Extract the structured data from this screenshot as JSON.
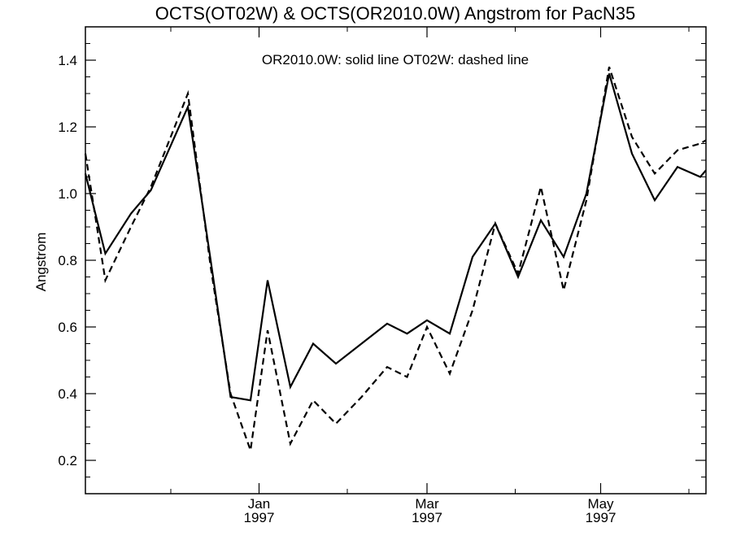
{
  "chart_data": {
    "type": "line",
    "title": "OCTS(OT02W) & OCTS(OR2010.0W)  Angstrom for PacN35",
    "annotation": "OR2010.0W: solid line   OT02W: dashed line",
    "xlabel": "",
    "ylabel": "Angstrom",
    "ylim": [
      0.1,
      1.5
    ],
    "yticks": [
      {
        "value": 0.2,
        "label": "0.2"
      },
      {
        "value": 0.4,
        "label": "0.4"
      },
      {
        "value": 0.6,
        "label": "0.6"
      },
      {
        "value": 0.8,
        "label": "0.8"
      },
      {
        "value": 1.0,
        "label": "1.0"
      },
      {
        "value": 1.2,
        "label": "1.2"
      },
      {
        "value": 1.4,
        "label": "1.4"
      }
    ],
    "yminor_step": 0.05,
    "xlim": [
      "1996-11-01",
      "1997-06-07"
    ],
    "xticks_major": [
      {
        "date": "1997-01-01",
        "month": "Jan",
        "year": "1997"
      },
      {
        "date": "1997-03-01",
        "month": "Mar",
        "year": "1997"
      },
      {
        "date": "1997-05-01",
        "month": "May",
        "year": "1997"
      }
    ],
    "xticks_minor": [
      "1996-12-01",
      "1997-02-01",
      "1997-04-01",
      "1997-06-01"
    ],
    "x": [
      "1996-11-01",
      "1996-11-08",
      "1996-11-17",
      "1996-11-24",
      "1996-12-07",
      "1996-12-15",
      "1996-12-22",
      "1996-12-29",
      "1997-01-04",
      "1997-01-12",
      "1997-01-20",
      "1997-01-28",
      "1997-02-06",
      "1997-02-15",
      "1997-02-22",
      "1997-03-01",
      "1997-03-09",
      "1997-03-17",
      "1997-03-25",
      "1997-04-02",
      "1997-04-10",
      "1997-04-18",
      "1997-04-26",
      "1997-05-04",
      "1997-05-12",
      "1997-05-20",
      "1997-05-28",
      "1997-06-05",
      "1997-06-07"
    ],
    "series": [
      {
        "name": "OR2010.0W",
        "style": "solid",
        "values": [
          1.06,
          0.82,
          0.94,
          1.01,
          1.26,
          0.8,
          0.39,
          0.38,
          0.74,
          0.42,
          0.55,
          0.49,
          0.55,
          0.61,
          0.58,
          0.62,
          0.58,
          0.81,
          0.91,
          0.75,
          0.92,
          0.81,
          1.0,
          1.36,
          1.12,
          0.98,
          1.08,
          1.05,
          1.07
        ]
      },
      {
        "name": "OT02W",
        "style": "dashed",
        "values": [
          1.12,
          0.74,
          0.9,
          1.02,
          1.3,
          0.78,
          0.4,
          0.23,
          0.59,
          0.25,
          0.38,
          0.31,
          0.39,
          0.48,
          0.45,
          0.6,
          0.46,
          0.65,
          0.91,
          0.76,
          1.02,
          0.71,
          0.98,
          1.38,
          1.17,
          1.06,
          1.13,
          1.15,
          1.16
        ]
      }
    ],
    "colors": {
      "line": "#000000",
      "background": "#ffffff"
    },
    "grid": false,
    "legend": "none"
  }
}
